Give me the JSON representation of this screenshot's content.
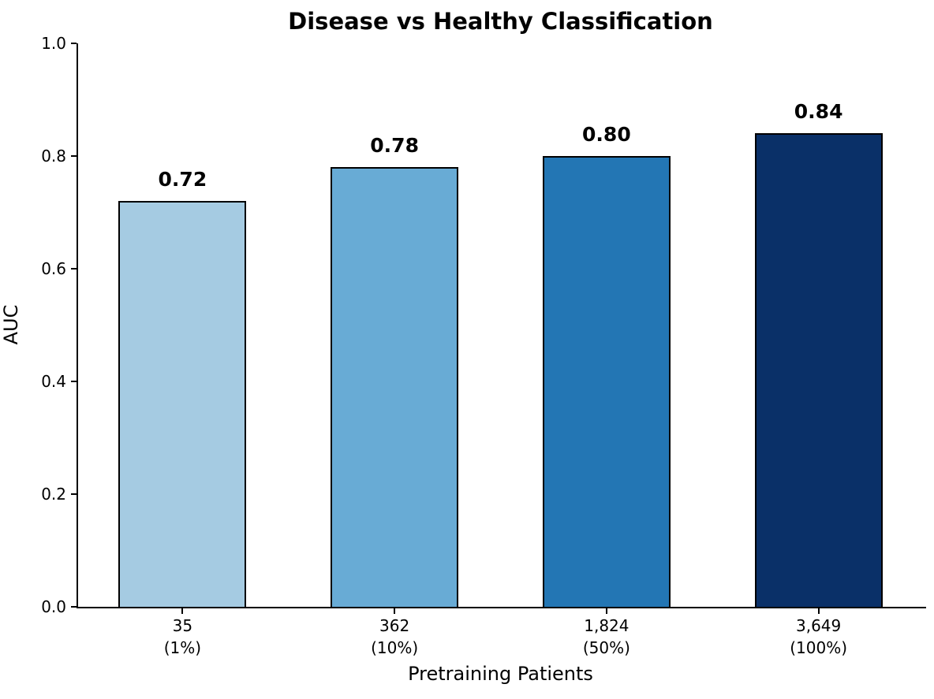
{
  "chart_data": {
    "type": "bar",
    "title": "Disease vs Healthy Classification",
    "xlabel": "Pretraining Patients",
    "ylabel": "AUC",
    "ylim": [
      0.0,
      1.0
    ],
    "yticks": [
      {
        "value": 0.0,
        "label": "0.0"
      },
      {
        "value": 0.2,
        "label": "0.2"
      },
      {
        "value": 0.4,
        "label": "0.4"
      },
      {
        "value": 0.6,
        "label": "0.6"
      },
      {
        "value": 0.8,
        "label": "0.8"
      },
      {
        "value": 1.0,
        "label": "1.0"
      }
    ],
    "grid": false,
    "legend": "none",
    "bars": [
      {
        "category_line1": "35",
        "category_line2": "(1%)",
        "value": 0.72,
        "value_label": "0.72",
        "fill_color": "#a5cbe2",
        "edge_color": "#000000"
      },
      {
        "category_line1": "362",
        "category_line2": "(10%)",
        "value": 0.78,
        "value_label": "0.78",
        "fill_color": "#68abd5",
        "edge_color": "#000000"
      },
      {
        "category_line1": "1,824",
        "category_line2": "(50%)",
        "value": 0.8,
        "value_label": "0.80",
        "fill_color": "#2376b4",
        "edge_color": "#000000"
      },
      {
        "category_line1": "3,649",
        "category_line2": "(100%)",
        "value": 0.84,
        "value_label": "0.84",
        "fill_color": "#0a3068",
        "edge_color": "#000000"
      }
    ]
  }
}
